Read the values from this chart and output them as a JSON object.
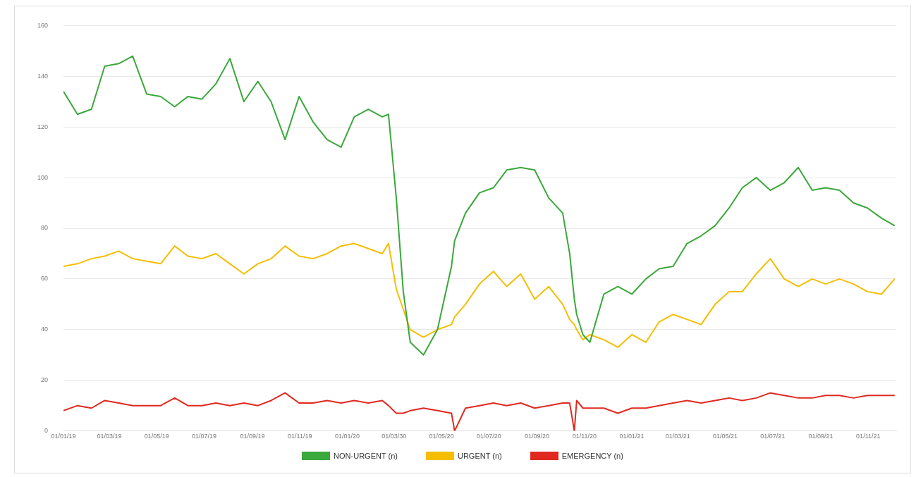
{
  "chart_data": {
    "type": "line",
    "x": [
      "2019-01-01",
      "2019-01-19",
      "2019-02-06",
      "2019-02-23",
      "2019-03-13",
      "2019-03-31",
      "2019-04-18",
      "2019-05-06",
      "2019-05-24",
      "2019-06-10",
      "2019-06-28",
      "2019-07-16",
      "2019-08-03",
      "2019-08-21",
      "2019-09-08",
      "2019-09-25",
      "2019-10-13",
      "2019-10-31",
      "2019-11-18",
      "2019-12-06",
      "2019-12-24",
      "2020-01-10",
      "2020-01-28",
      "2020-02-15",
      "2020-02-23",
      "2020-03-04",
      "2020-03-13",
      "2020-03-22",
      "2020-04-08",
      "2020-04-26",
      "2020-05-14",
      "2020-05-18",
      "2020-06-01",
      "2020-06-19",
      "2020-07-07",
      "2020-07-24",
      "2020-08-11",
      "2020-08-29",
      "2020-09-16",
      "2020-10-04",
      "2020-10-13",
      "2020-10-19",
      "2020-10-22",
      "2020-10-30",
      "2020-11-08",
      "2020-11-26",
      "2020-12-14",
      "2021-01-01",
      "2021-01-19",
      "2021-02-05",
      "2021-02-23",
      "2021-03-13",
      "2021-03-31",
      "2021-04-18",
      "2021-05-06",
      "2021-05-23",
      "2021-06-10",
      "2021-06-28",
      "2021-07-16",
      "2021-08-03",
      "2021-08-21",
      "2021-09-07",
      "2021-09-25",
      "2021-10-13",
      "2021-10-31",
      "2021-11-18",
      "2021-12-05"
    ],
    "series": [
      {
        "name": "NON-URGENT (n)",
        "color": "#3aa83a",
        "values": [
          134,
          125,
          127,
          144,
          145,
          148,
          133,
          132,
          128,
          132,
          131,
          137,
          147,
          130,
          138,
          130,
          115,
          132,
          122,
          115,
          112,
          124,
          127,
          124,
          125,
          92,
          55,
          35,
          30,
          40,
          65,
          75,
          86,
          94,
          96,
          103,
          104,
          103,
          92,
          86,
          70,
          52,
          46,
          38,
          35,
          54,
          57,
          54,
          60,
          64,
          65,
          74,
          77,
          81,
          88,
          96,
          100,
          95,
          98,
          104,
          95,
          96,
          95,
          90,
          88,
          84,
          81
        ]
      },
      {
        "name": "URGENT (n)",
        "color": "#f5be00",
        "values": [
          65,
          66,
          68,
          69,
          71,
          68,
          67,
          66,
          73,
          69,
          68,
          70,
          66,
          62,
          66,
          68,
          73,
          69,
          68,
          70,
          73,
          74,
          72,
          70,
          74,
          56,
          48,
          40,
          37,
          40,
          42,
          45,
          50,
          58,
          63,
          57,
          62,
          52,
          57,
          50,
          44,
          42,
          40,
          36,
          38,
          36,
          33,
          38,
          35,
          43,
          46,
          44,
          42,
          50,
          55,
          55,
          62,
          68,
          60,
          57,
          60,
          58,
          60,
          58,
          55,
          54,
          60
        ]
      },
      {
        "name": "EMERGENCY (n)",
        "color": "#e0291f",
        "values": [
          8,
          10,
          9,
          12,
          11,
          10,
          10,
          10,
          13,
          10,
          10,
          11,
          10,
          11,
          10,
          12,
          15,
          11,
          11,
          12,
          11,
          12,
          11,
          12,
          10,
          7,
          7,
          8,
          9,
          8,
          7,
          0,
          9,
          10,
          11,
          10,
          11,
          9,
          10,
          11,
          11,
          0,
          12,
          9,
          9,
          9,
          7,
          9,
          9,
          10,
          11,
          12,
          11,
          12,
          13,
          12,
          13,
          15,
          14,
          13,
          13,
          14,
          14,
          13,
          14,
          14,
          14
        ]
      }
    ],
    "xlim": [
      "2019-01-01",
      "2021-12-07"
    ],
    "xticks": [
      {
        "value": "2019-01-01",
        "label": "01/01/19"
      },
      {
        "value": "2019-03-01",
        "label": "01/03/19"
      },
      {
        "value": "2019-05-01",
        "label": "01/05/19"
      },
      {
        "value": "2019-07-01",
        "label": "01/07/19"
      },
      {
        "value": "2019-09-01",
        "label": "01/09/19"
      },
      {
        "value": "2019-11-01",
        "label": "01/11/19"
      },
      {
        "value": "2020-01-01",
        "label": "01/01/20"
      },
      {
        "value": "2020-03-01",
        "label": "01/03/30"
      },
      {
        "value": "2020-05-01",
        "label": "01/05/20"
      },
      {
        "value": "2020-07-01",
        "label": "01/07/20"
      },
      {
        "value": "2020-09-01",
        "label": "01/09/20"
      },
      {
        "value": "2020-11-01",
        "label": "01/11/20"
      },
      {
        "value": "2021-01-01",
        "label": "01/01/21"
      },
      {
        "value": "2021-03-01",
        "label": "01/03/21"
      },
      {
        "value": "2021-05-01",
        "label": "01/05/21"
      },
      {
        "value": "2021-07-01",
        "label": "01/07/21"
      },
      {
        "value": "2021-09-01",
        "label": "01/09/21"
      },
      {
        "value": "2021-11-01",
        "label": "01/11/21"
      }
    ],
    "ylim": [
      0,
      160
    ],
    "yticks": [
      0,
      20,
      40,
      60,
      80,
      100,
      120,
      140,
      160
    ],
    "grid": "y",
    "legend": "bottom",
    "marker": "none",
    "line_style": "solid"
  }
}
